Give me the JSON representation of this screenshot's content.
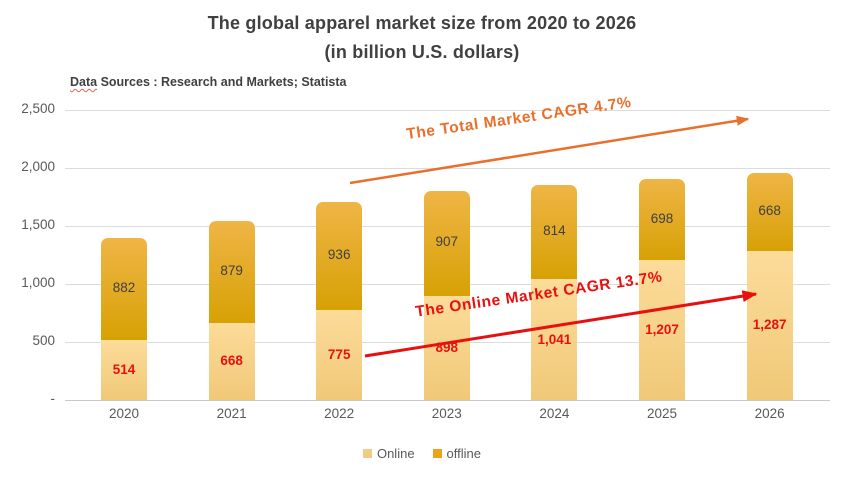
{
  "chart_data": {
    "type": "bar",
    "stacked": true,
    "title": "The global apparel market size from 2020 to 2026",
    "subtitle": "(in billion U.S. dollars)",
    "source_word": "Data",
    "source_rest": " Sources : Research and Markets; Statista",
    "categories": [
      "2020",
      "2021",
      "2022",
      "2023",
      "2024",
      "2025",
      "2026"
    ],
    "series": [
      {
        "name": "Online",
        "values": [
          514,
          668,
          775,
          898,
          1041,
          1207,
          1287
        ],
        "labels": [
          "514",
          "668",
          "775",
          "898",
          "1,041",
          "1,207",
          "1,287"
        ],
        "label_color": "#E8100F",
        "color_top": "#FCDC9A",
        "color_bottom": "#F0C878",
        "legend_color": "#F2CA85"
      },
      {
        "name": "offline",
        "values": [
          882,
          879,
          936,
          907,
          814,
          698,
          668
        ],
        "labels": [
          "882",
          "879",
          "936",
          "907",
          "814",
          "698",
          "668"
        ],
        "label_color": "#3F3F3F",
        "color_top": "#EFB546",
        "color_bottom": "#D7A105",
        "legend_color": "#E9A41C"
      }
    ],
    "ylim": [
      0,
      2500
    ],
    "ytick_interval": 500,
    "yticks": [
      {
        "label": "-",
        "value": 0
      },
      {
        "label": "500",
        "value": 500
      },
      {
        "label": "1,000",
        "value": 1000
      },
      {
        "label": "1,500",
        "value": 1500
      },
      {
        "label": "2,000",
        "value": 2000
      },
      {
        "label": "2,500",
        "value": 2500
      }
    ],
    "grid": true,
    "legend_position": "bottom",
    "annotations": [
      {
        "text": "The Total Market CAGR 4.7%",
        "color": "#E8702B"
      },
      {
        "text": "The Online Market CAGR 13.7%",
        "color": "#E8100F"
      }
    ]
  },
  "colors": {
    "title": "#404040",
    "axis_text": "#595959",
    "gridline": "#DCDCDC",
    "axis_line": "#C9C9C9",
    "squiggle": "#E0645C"
  }
}
